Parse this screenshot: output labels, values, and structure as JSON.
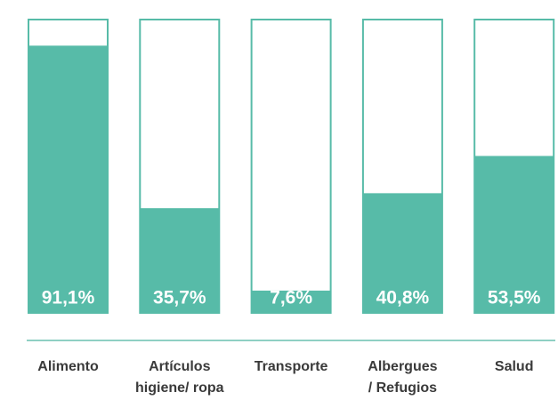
{
  "chart_data": {
    "type": "bar",
    "categories": [
      [
        "Alimento"
      ],
      [
        "Artículos",
        "higiene/ ropa"
      ],
      [
        "Transporte"
      ],
      [
        "Albergues",
        "/ Refugios"
      ],
      [
        "Salud"
      ]
    ],
    "values": [
      91.1,
      35.7,
      7.6,
      40.8,
      53.5
    ],
    "value_labels": [
      "91,1%",
      "35,7%",
      "7,6%",
      "40,8%",
      "53,5%"
    ],
    "color": "#57bba8",
    "ylim": [
      0,
      100
    ]
  }
}
